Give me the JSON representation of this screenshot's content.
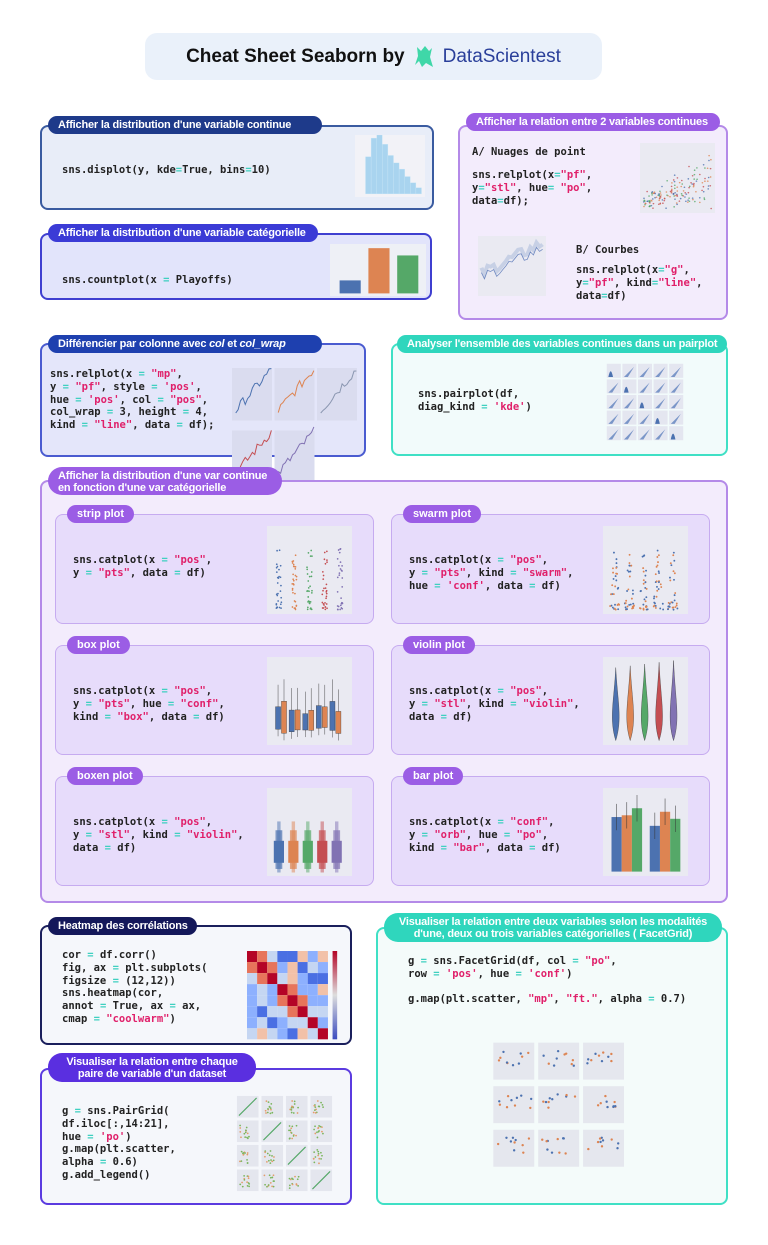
{
  "header": {
    "title": "Cheat Sheet Seaborn by",
    "brand": "DataScientest",
    "logo_icon": "datascientest-logo"
  },
  "colors": {
    "string": "#e0206a",
    "operator": "#3fd0c0",
    "navy": "#1e3a8a",
    "indigo": "#3b3bd6",
    "purple": "#9b5de5",
    "teal": "#2fd6bd"
  },
  "sections": {
    "displot": {
      "title": "Afficher la distribution d'une variable continue",
      "code": "sns.displot(y, kde=True, bins=10)"
    },
    "countplot": {
      "title": "Afficher la distribution d'une variable catégorielle",
      "code": "sns.countplot(x = Playoffs)"
    },
    "relation": {
      "title": "Afficher la relation entre 2 variables continues",
      "sub_a": "A/ Nuages de point",
      "code_a": "sns.relplot(x=\"pf\",\ny=\"stl\", hue= \"po\",\ndata=df);",
      "sub_b": "B/ Courbes",
      "code_b": "sns.relplot(x=\"g\",\ny=\"pf\", kind=\"line\",\ndata=df)"
    },
    "colwrap": {
      "title_pre": "Différencier par colonne avec ",
      "title_col": "col",
      "title_mid": " et ",
      "title_colwrap": "col_wrap",
      "code": "sns.relplot(x = \"mp\",\ny = \"pf\", style = 'pos',\nhue = 'pos', col = \"pos\",\ncol_wrap = 3, height = 4,\nkind = \"line\", data = df);"
    },
    "pairplot": {
      "title": "Analyser l'ensemble des variables continues dans un pairplot",
      "code": "sns.pairplot(df,\ndiag_kind = 'kde')"
    },
    "catplot": {
      "title": "Afficher la distribution d'une var continue\nen fonction d'une var catégorielle",
      "items": [
        {
          "label": "strip plot",
          "code": "sns.catplot(x = \"pos\",\ny = \"pts\", data = df)"
        },
        {
          "label": "swarm plot",
          "code": "sns.catplot(x = \"pos\",\ny = \"pts\", kind = \"swarm\",\nhue = 'conf', data = df)"
        },
        {
          "label": "box plot",
          "code": "sns.catplot(x = \"pos\",\ny = \"pts\", hue = \"conf\",\nkind = \"box\", data = df)"
        },
        {
          "label": "violin plot",
          "code": "sns.catplot(x = \"pos\",\ny = \"stl\", kind = \"violin\",\ndata = df)"
        },
        {
          "label": "boxen plot",
          "code": "sns.catplot(x = \"pos\",\ny = \"stl\", kind = \"violin\",\ndata = df)"
        },
        {
          "label": "bar plot",
          "code": "sns.catplot(x = \"conf\",\ny = \"orb\", hue = \"po\",\nkind = \"bar\", data = df)"
        }
      ]
    },
    "heatmap": {
      "title": "Heatmap des corrélations",
      "code": "cor = df.corr()\nfig, ax = plt.subplots(\nfigsize = (12,12))\nsns.heatmap(cor,\nannot = True, ax = ax,\ncmap = \"coolwarm\")"
    },
    "pairgrid": {
      "title": "Visualiser la relation entre chaque\npaire de variable d'un dataset",
      "code": "g = sns.PairGrid(\ndf.iloc[:,14:21],\nhue = 'po')\ng.map(plt.scatter,\nalpha = 0.6)\ng.add_legend()"
    },
    "facetgrid": {
      "title": "Visualiser la relation entre deux variables selon les modalités\nd'une, deux ou trois variables catégorielles ( FacetGrid)",
      "code": "g = sns.FacetGrid(df, col = \"po\",\nrow = 'pos', hue = 'conf')\n\ng.map(plt.scatter, \"mp\", \"ft.\", alpha = 0.7)"
    }
  }
}
